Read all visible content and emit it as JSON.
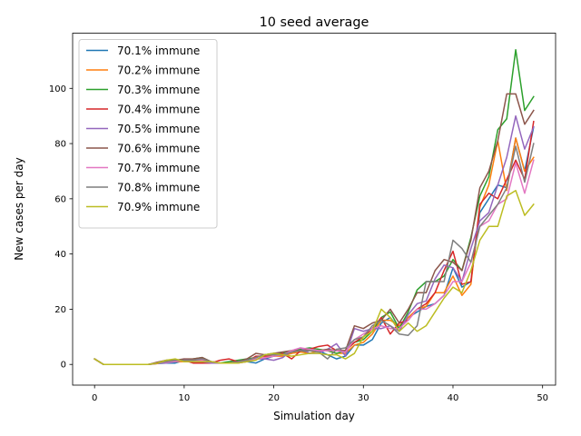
{
  "chart_data": {
    "type": "line",
    "title": "10 seed average",
    "xlabel": "Simulation day",
    "ylabel": "New cases per day",
    "xlim": [
      -2.45,
      51.45
    ],
    "ylim": [
      -7.5,
      120
    ],
    "xticks": [
      0,
      10,
      20,
      30,
      40,
      50
    ],
    "yticks": [
      0,
      20,
      40,
      60,
      80,
      100
    ],
    "grid": false,
    "legend_position": "top-left",
    "x": [
      0,
      1,
      2,
      3,
      4,
      5,
      6,
      7,
      8,
      9,
      10,
      11,
      12,
      13,
      14,
      15,
      16,
      17,
      18,
      19,
      20,
      21,
      22,
      23,
      24,
      25,
      26,
      27,
      28,
      29,
      30,
      31,
      32,
      33,
      34,
      35,
      36,
      37,
      38,
      39,
      40,
      41,
      42,
      43,
      44,
      45,
      46,
      47,
      48,
      49
    ],
    "series": [
      {
        "name": "70.1% immune",
        "color": "#1f77b4",
        "values": [
          2,
          0,
          0,
          0,
          0,
          0,
          0,
          0.3,
          0.5,
          0.5,
          1.5,
          1.5,
          2,
          1,
          0.5,
          0.5,
          0.5,
          1,
          0.5,
          2,
          3,
          3.5,
          4,
          5,
          4,
          5,
          3.5,
          2,
          3,
          7,
          7,
          9,
          15,
          17,
          13,
          17,
          19,
          21,
          22,
          25,
          35,
          28,
          30,
          55,
          60,
          65,
          64,
          82,
          70,
          86
        ]
      },
      {
        "name": "70.2% immune",
        "color": "#ff7f0e",
        "values": [
          2,
          0,
          0,
          0,
          0,
          0,
          0,
          0.3,
          0.8,
          1,
          1,
          1,
          1.5,
          1,
          0.5,
          0.5,
          0.5,
          1,
          2,
          2.5,
          3,
          3,
          4,
          4.5,
          4,
          5,
          5,
          4,
          4,
          7,
          8,
          11,
          16,
          16,
          14,
          17,
          20,
          21,
          26,
          26,
          32,
          25,
          29,
          57,
          65,
          81,
          63,
          82,
          70,
          75
        ]
      },
      {
        "name": "70.3% immune",
        "color": "#2ca02c",
        "values": [
          2,
          0,
          0,
          0,
          0,
          0,
          0,
          0.5,
          1.5,
          1.5,
          1.5,
          2,
          2.5,
          1,
          0.5,
          1,
          1.5,
          2,
          2.5,
          3.5,
          4,
          4,
          5,
          5.5,
          6,
          5.5,
          5,
          4,
          5,
          8,
          9,
          12,
          17,
          19,
          13,
          19,
          27,
          30,
          30,
          32,
          38,
          34,
          46,
          61,
          68,
          85,
          89,
          114,
          92,
          97
        ]
      },
      {
        "name": "70.4% immune",
        "color": "#d62728",
        "values": [
          2,
          0,
          0,
          0,
          0,
          0,
          0,
          0.5,
          1,
          1.5,
          1.5,
          0.5,
          0.5,
          0.5,
          1.5,
          2,
          1,
          1,
          3,
          3,
          3,
          4,
          2,
          5,
          5.5,
          6.5,
          7,
          5,
          5,
          8,
          10,
          13,
          17,
          11,
          15,
          16,
          20,
          22,
          26,
          34,
          41,
          29,
          30,
          58,
          62,
          60,
          67,
          74,
          67,
          88
        ]
      },
      {
        "name": "70.5% immune",
        "color": "#9467bd",
        "values": [
          2,
          0,
          0,
          0,
          0,
          0,
          0,
          0.5,
          0.5,
          1,
          2,
          1,
          1,
          0.5,
          0.5,
          0.5,
          1,
          1,
          2,
          2,
          1.5,
          2.5,
          5,
          6,
          4,
          4,
          5.5,
          7.5,
          3,
          13,
          12,
          13,
          13,
          14,
          12,
          18,
          22,
          23,
          31,
          36,
          35,
          30,
          42,
          52,
          55,
          65,
          75,
          90,
          78,
          86
        ]
      },
      {
        "name": "70.6% immune",
        "color": "#8c564b",
        "values": [
          2,
          0,
          0,
          0,
          0,
          0,
          0,
          0.8,
          1.5,
          1.5,
          2,
          2,
          2.5,
          1,
          0.5,
          0.5,
          1,
          2,
          4,
          3.5,
          4,
          4.5,
          5,
          5,
          5,
          5,
          5.5,
          5,
          5,
          14,
          13,
          15,
          16,
          20,
          15,
          20,
          26,
          26,
          34,
          38,
          37,
          34,
          45,
          64,
          70,
          81,
          98,
          98,
          87,
          92
        ]
      },
      {
        "name": "70.7% immune",
        "color": "#e377c2",
        "values": [
          2,
          0,
          0,
          0,
          0,
          0,
          0,
          0.5,
          0.8,
          1,
          1.5,
          1.5,
          1.5,
          1,
          0.5,
          0.5,
          0.5,
          1,
          2,
          2.5,
          3,
          3.5,
          5,
          6,
          5.5,
          5,
          5,
          5,
          4.5,
          9,
          11,
          13,
          14,
          13,
          13,
          16,
          20,
          20,
          22,
          25,
          30,
          30,
          37,
          50,
          52,
          58,
          60,
          73,
          62,
          74
        ]
      },
      {
        "name": "70.8% immune",
        "color": "#7f7f7f",
        "values": [
          2,
          0,
          0,
          0,
          0,
          0,
          0,
          0.5,
          1,
          1.5,
          1.5,
          1.5,
          2,
          1,
          0.5,
          0.5,
          1,
          1.5,
          2.5,
          3.5,
          3.5,
          3.5,
          4.5,
          5,
          5,
          4.5,
          2,
          5.5,
          6,
          9,
          10,
          14,
          16,
          14,
          11,
          10.5,
          14,
          30,
          30,
          30,
          45,
          42,
          37,
          50,
          54,
          58,
          64,
          79,
          66,
          80
        ]
      },
      {
        "name": "70.9% immune",
        "color": "#bcbd22",
        "values": [
          2,
          0,
          0,
          0,
          0,
          0,
          0,
          0.5,
          1.5,
          2,
          1,
          1,
          1,
          1,
          0.5,
          0.5,
          0.5,
          1,
          1.5,
          3.5,
          4,
          3.5,
          3,
          3.5,
          4,
          4,
          3.5,
          3.5,
          2,
          4,
          10,
          12,
          20,
          17,
          12,
          15,
          12,
          14,
          19,
          24,
          28,
          26,
          34,
          45,
          50,
          50,
          61,
          63,
          54,
          58
        ]
      }
    ]
  }
}
